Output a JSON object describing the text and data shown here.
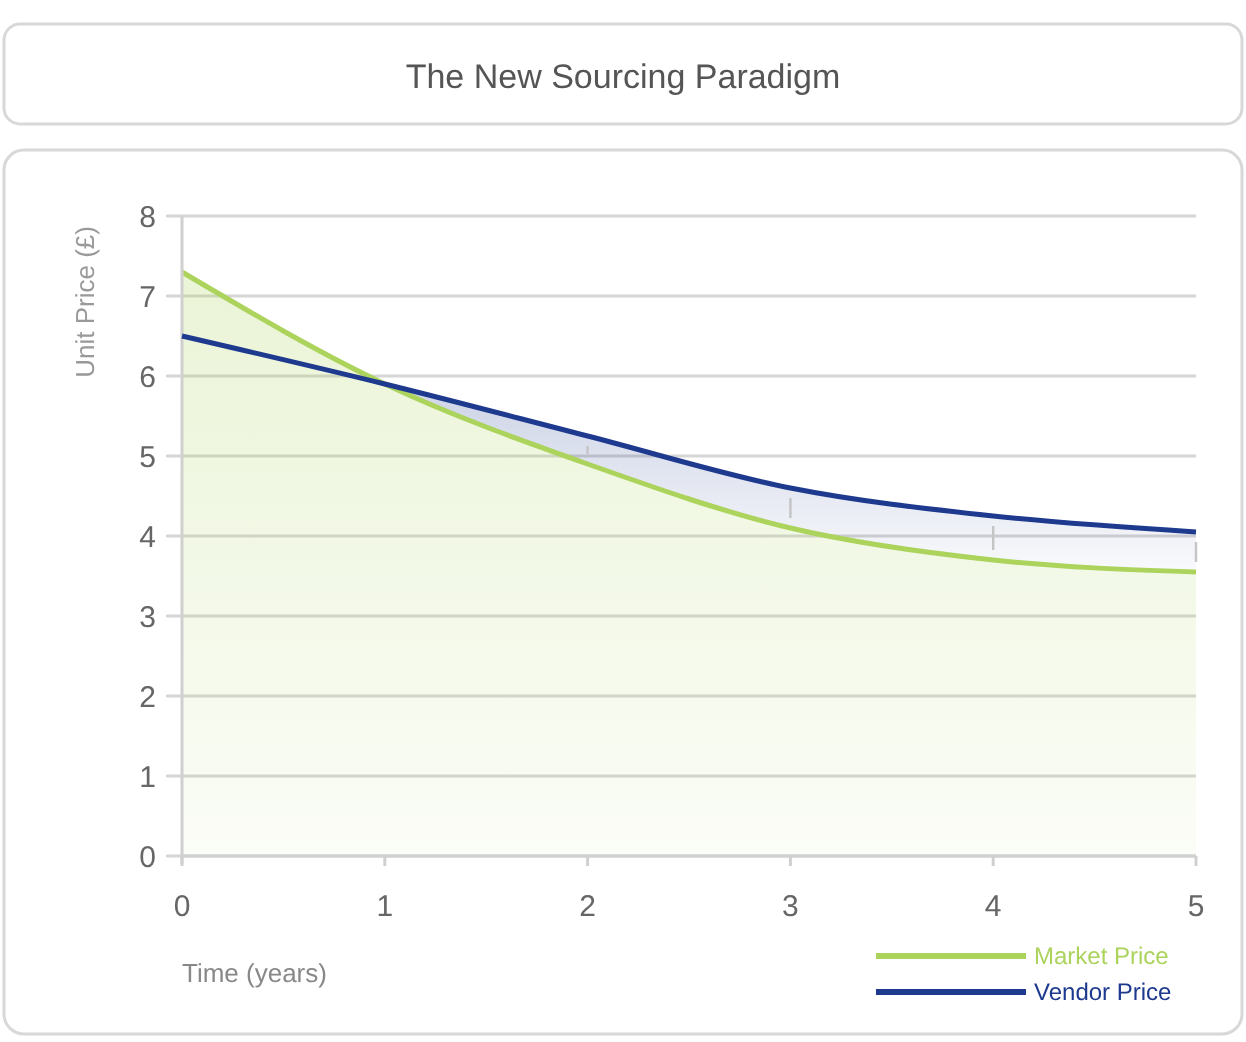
{
  "chart_data": {
    "type": "line",
    "title": "The New Sourcing Paradigm",
    "xlabel": "Time (years)",
    "ylabel": "Unit Price (£)",
    "x": [
      0,
      1,
      2,
      3,
      4,
      5
    ],
    "series": [
      {
        "name": "Market Price",
        "type": "area",
        "color": "#acd35c",
        "values": [
          7.3,
          5.9,
          4.9,
          4.1,
          3.7,
          3.55
        ]
      },
      {
        "name": "Vendor Price",
        "type": "line",
        "color": "#1e3a8f",
        "values": [
          6.5,
          5.9,
          5.25,
          4.6,
          4.25,
          4.05
        ]
      }
    ],
    "xlim": [
      0,
      5
    ],
    "xticks": [
      0,
      1,
      2,
      3,
      4,
      5
    ],
    "ylim": [
      0,
      8
    ],
    "yticks": [
      0,
      1,
      2,
      3,
      4,
      5,
      6,
      7,
      8
    ],
    "grid": "y",
    "legend": "bottom right"
  }
}
